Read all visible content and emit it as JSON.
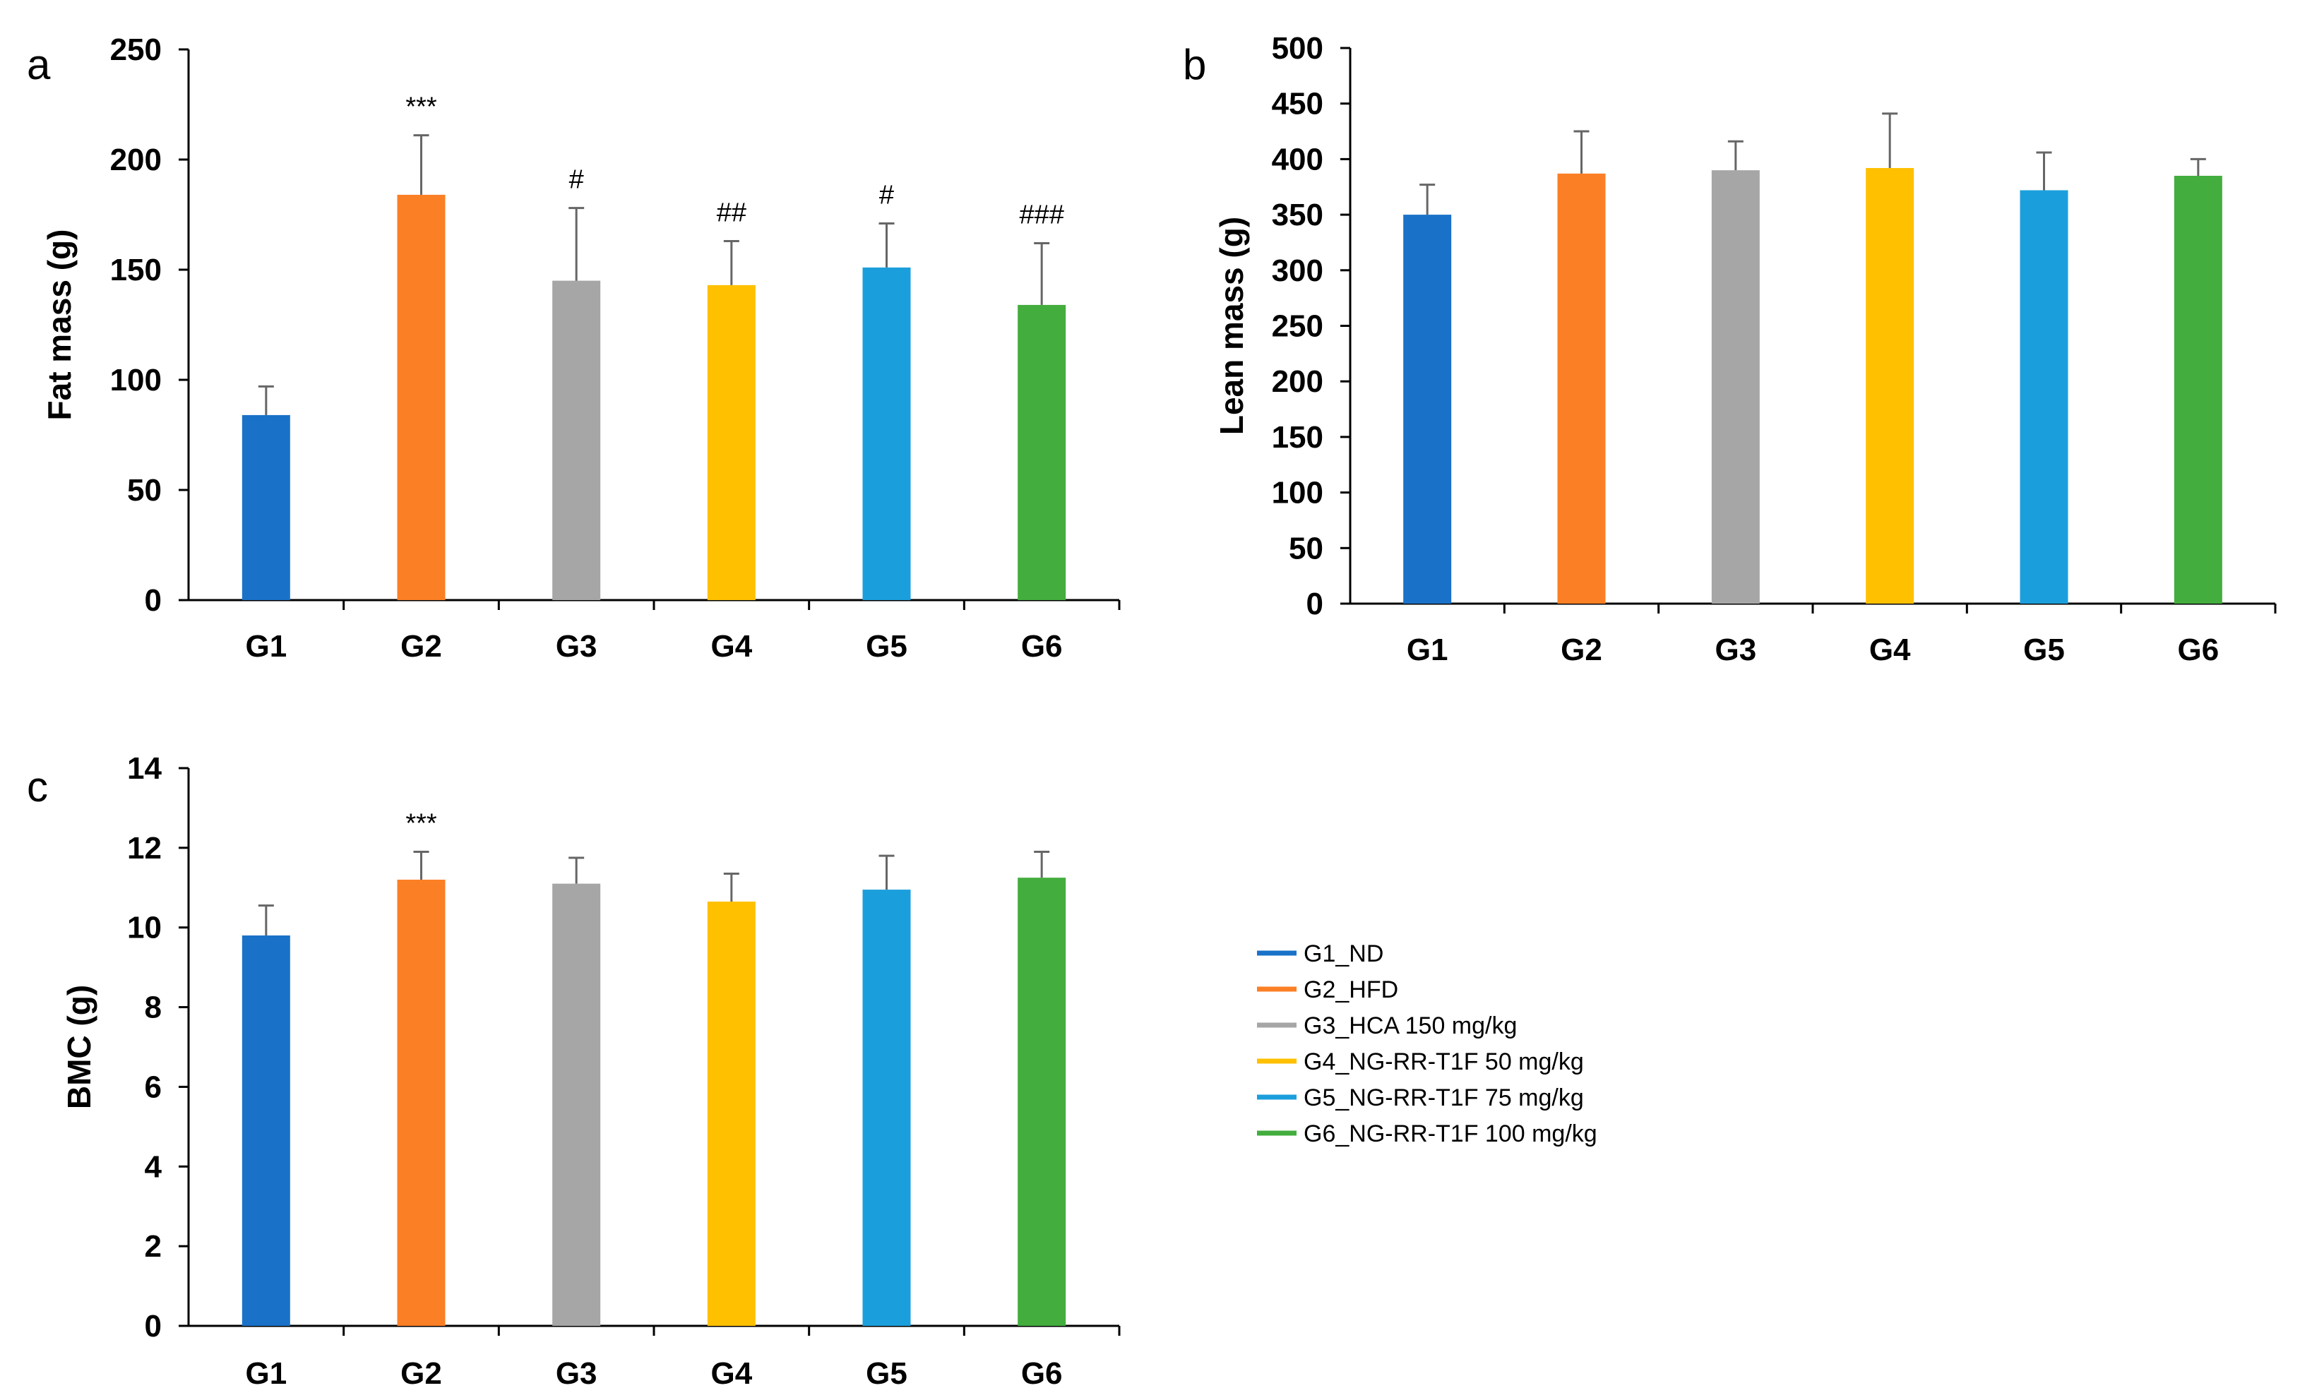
{
  "colors": {
    "G1": "#1a72c8",
    "G2": "#fb7f25",
    "G3": "#a6a6a6",
    "G4": "#ffc000",
    "G5": "#1b9fdc",
    "G6": "#43ad3d",
    "error_bar": "#666666",
    "axis": "#000000"
  },
  "legend": {
    "items": [
      {
        "key": "G1",
        "label": "G1_ND"
      },
      {
        "key": "G2",
        "label": "G2_HFD"
      },
      {
        "key": "G3",
        "label": "G3_HCA 150 mg/kg"
      },
      {
        "key": "G4",
        "label": "G4_NG-RR-T1F 50 mg/kg"
      },
      {
        "key": "G5",
        "label": "G5_NG-RR-T1F 75 mg/kg"
      },
      {
        "key": "G6",
        "label": "G6_NG-RR-T1F 100 mg/kg"
      }
    ]
  },
  "chart_data": [
    {
      "panel": "a",
      "type": "bar",
      "ylabel": "Fat mass (g)",
      "xlabel": "",
      "ylim": [
        0,
        250
      ],
      "yticks": [
        0,
        50,
        100,
        150,
        200,
        250
      ],
      "categories": [
        "G1",
        "G2",
        "G3",
        "G4",
        "G5",
        "G6"
      ],
      "values": [
        84,
        184,
        145,
        143,
        151,
        134
      ],
      "errors": [
        13,
        27,
        33,
        20,
        20,
        28
      ],
      "annotations": [
        "",
        "***",
        "#",
        "##",
        "#",
        "###"
      ]
    },
    {
      "panel": "b",
      "type": "bar",
      "ylabel": "Lean mass (g)",
      "xlabel": "",
      "ylim": [
        0,
        500
      ],
      "yticks": [
        0,
        50,
        100,
        150,
        200,
        250,
        300,
        350,
        400,
        450,
        500
      ],
      "categories": [
        "G1",
        "G2",
        "G3",
        "G4",
        "G5",
        "G6"
      ],
      "values": [
        350,
        387,
        390,
        392,
        372,
        385
      ],
      "errors": [
        27,
        38,
        26,
        49,
        34,
        15
      ],
      "annotations": [
        "",
        "",
        "",
        "",
        "",
        ""
      ]
    },
    {
      "panel": "c",
      "type": "bar",
      "ylabel": "BMC (g)",
      "xlabel": "",
      "ylim": [
        0,
        14
      ],
      "yticks": [
        0,
        2,
        4,
        6,
        8,
        10,
        12,
        14
      ],
      "categories": [
        "G1",
        "G2",
        "G3",
        "G4",
        "G5",
        "G6"
      ],
      "values": [
        9.8,
        11.2,
        11.1,
        10.65,
        10.95,
        11.25
      ],
      "errors": [
        0.75,
        0.7,
        0.65,
        0.7,
        0.85,
        0.65
      ],
      "annotations": [
        "",
        "***",
        "",
        "",
        "",
        ""
      ]
    }
  ]
}
